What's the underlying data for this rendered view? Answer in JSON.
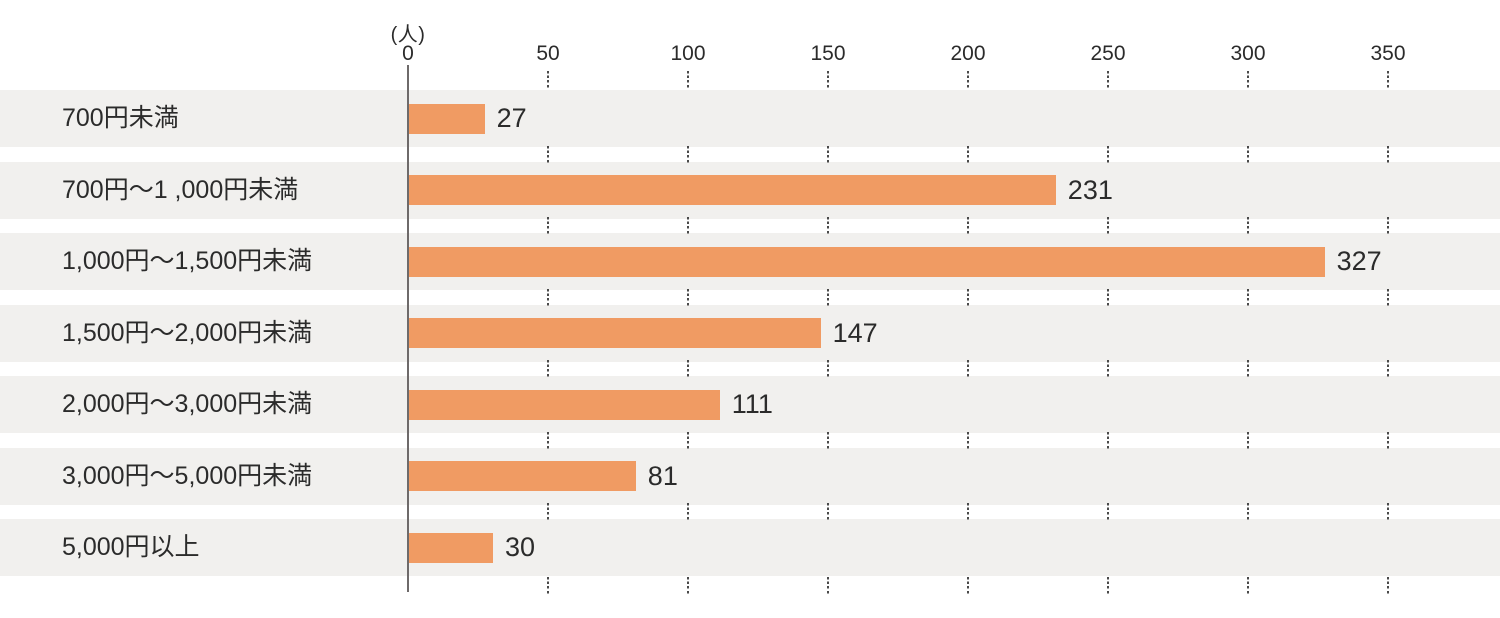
{
  "chart_data": {
    "type": "bar",
    "orientation": "horizontal",
    "title": "",
    "unit_label": "(人)",
    "xlabel": "",
    "ylabel": "",
    "categories": [
      "700円未満",
      "700円～1 ,000円未満",
      "1,000円～1,500円未満",
      "1,500円～2,000円未満",
      "2,000円～3,000円未満",
      "3,000円～5,000円未満",
      "5,000円以上"
    ],
    "values": [
      27,
      231,
      327,
      147,
      111,
      81,
      30
    ],
    "x_ticks": [
      0,
      50,
      100,
      150,
      200,
      250,
      300,
      350
    ],
    "xlim": [
      0,
      350
    ],
    "grid": "dotted-vertical-in-row-gaps",
    "legend": "none",
    "colors": {
      "bar": "#F09B63",
      "row_background": "#F1F0EE",
      "gap_background": "#FFFFFF",
      "text": "#2B2B2B",
      "axis_line": "#6E6A6A",
      "grid_dots": "#4A4A4A"
    }
  }
}
